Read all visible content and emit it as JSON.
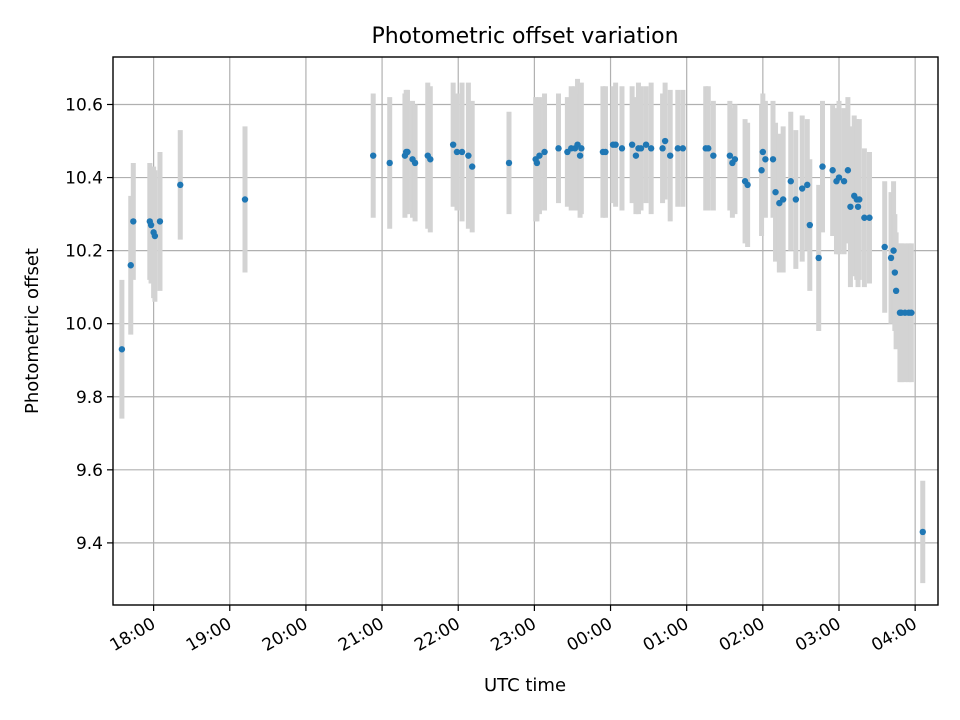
{
  "chart_data": {
    "type": "scatter",
    "title": "Photometric offset variation",
    "xlabel": "UTC time",
    "ylabel": "Photometric offset",
    "xlim": [
      "17:28",
      "04:18"
    ],
    "ylim": [
      9.23,
      10.73
    ],
    "x_tick_labels": [
      "18:00",
      "19:00",
      "20:00",
      "21:00",
      "22:00",
      "23:00",
      "00:00",
      "01:00",
      "02:00",
      "03:00",
      "04:00"
    ],
    "y_tick_values": [
      9.4,
      9.6,
      9.8,
      10.0,
      10.2,
      10.4,
      10.6
    ],
    "y_tick_labels": [
      "9.4",
      "9.6",
      "9.8",
      "10.0",
      "10.2",
      "10.4",
      "10.6"
    ],
    "grid": true,
    "marker_color": "#1f77b4",
    "errorbar_color": "#d3d3d3",
    "series": [
      {
        "x": [
          "17:35",
          "17:42",
          "17:44",
          "17:57",
          "17:58",
          "18:00",
          "18:01",
          "18:05",
          "18:21",
          "19:12",
          "20:53",
          "21:06",
          "21:18",
          "21:19",
          "21:20",
          "21:24",
          "21:26",
          "21:36",
          "21:38",
          "21:56",
          "21:59",
          "22:03",
          "22:08",
          "22:11",
          "22:40",
          "23:01",
          "23:02",
          "23:04",
          "23:08",
          "23:19",
          "23:26",
          "23:29",
          "23:32",
          "23:34",
          "23:36",
          "23:37",
          "23:54",
          "23:56",
          "24:02",
          "24:04",
          "24:09",
          "24:17",
          "24:20",
          "24:22",
          "24:24",
          "24:28",
          "24:32",
          "24:41",
          "24:43",
          "24:47",
          "24:53",
          "24:57",
          "25:15",
          "25:17",
          "25:21",
          "25:34",
          "25:36",
          "25:38",
          "25:46",
          "25:48",
          "25:59",
          "26:00",
          "26:02",
          "26:08",
          "26:10",
          "26:13",
          "26:16",
          "26:22",
          "26:26",
          "26:31",
          "26:35",
          "26:37",
          "26:44",
          "26:47",
          "26:55",
          "26:58",
          "27:00",
          "27:04",
          "27:07",
          "27:09",
          "27:12",
          "27:14",
          "27:15",
          "27:16",
          "27:20",
          "27:24",
          "27:36",
          "27:41",
          "27:43",
          "27:44",
          "27:45",
          "27:48",
          "27:49",
          "27:52",
          "27:55",
          "27:57",
          "28:06"
        ],
        "y": [
          9.93,
          10.16,
          10.28,
          10.28,
          10.27,
          10.25,
          10.24,
          10.28,
          10.38,
          10.34,
          10.46,
          10.44,
          10.46,
          10.47,
          10.47,
          10.45,
          10.44,
          10.46,
          10.45,
          10.49,
          10.47,
          10.47,
          10.46,
          10.43,
          10.44,
          10.45,
          10.44,
          10.46,
          10.47,
          10.48,
          10.47,
          10.48,
          10.48,
          10.49,
          10.46,
          10.48,
          10.47,
          10.47,
          10.49,
          10.49,
          10.48,
          10.49,
          10.46,
          10.48,
          10.48,
          10.49,
          10.48,
          10.48,
          10.5,
          10.46,
          10.48,
          10.48,
          10.48,
          10.48,
          10.46,
          10.46,
          10.44,
          10.45,
          10.39,
          10.38,
          10.42,
          10.47,
          10.45,
          10.45,
          10.36,
          10.33,
          10.34,
          10.39,
          10.34,
          10.37,
          10.38,
          10.27,
          10.18,
          10.43,
          10.42,
          10.39,
          10.4,
          10.39,
          10.42,
          10.32,
          10.35,
          10.34,
          10.32,
          10.34,
          10.29,
          10.29,
          10.21,
          10.18,
          10.2,
          10.14,
          10.09,
          10.03,
          10.03,
          10.03,
          10.03,
          10.03,
          9.43
        ],
        "yerr": [
          0.19,
          0.19,
          0.16,
          0.16,
          0.16,
          0.18,
          0.18,
          0.19,
          0.15,
          0.2,
          0.17,
          0.18,
          0.17,
          0.17,
          0.17,
          0.16,
          0.16,
          0.2,
          0.2,
          0.17,
          0.16,
          0.19,
          0.2,
          0.18,
          0.14,
          0.17,
          0.16,
          0.16,
          0.16,
          0.15,
          0.15,
          0.17,
          0.17,
          0.18,
          0.17,
          0.18,
          0.18,
          0.18,
          0.16,
          0.17,
          0.17,
          0.16,
          0.16,
          0.18,
          0.17,
          0.16,
          0.18,
          0.15,
          0.16,
          0.18,
          0.16,
          0.16,
          0.17,
          0.17,
          0.15,
          0.15,
          0.15,
          0.15,
          0.17,
          0.17,
          0.18,
          0.16,
          0.16,
          0.16,
          0.19,
          0.19,
          0.2,
          0.19,
          0.19,
          0.2,
          0.18,
          0.18,
          0.2,
          0.18,
          0.18,
          0.2,
          0.21,
          0.2,
          0.2,
          0.22,
          0.22,
          0.22,
          0.22,
          0.22,
          0.19,
          0.18,
          0.18,
          0.18,
          0.19,
          0.16,
          0.16,
          0.19,
          0.19,
          0.19,
          0.19,
          0.19,
          0.14
        ]
      }
    ]
  }
}
